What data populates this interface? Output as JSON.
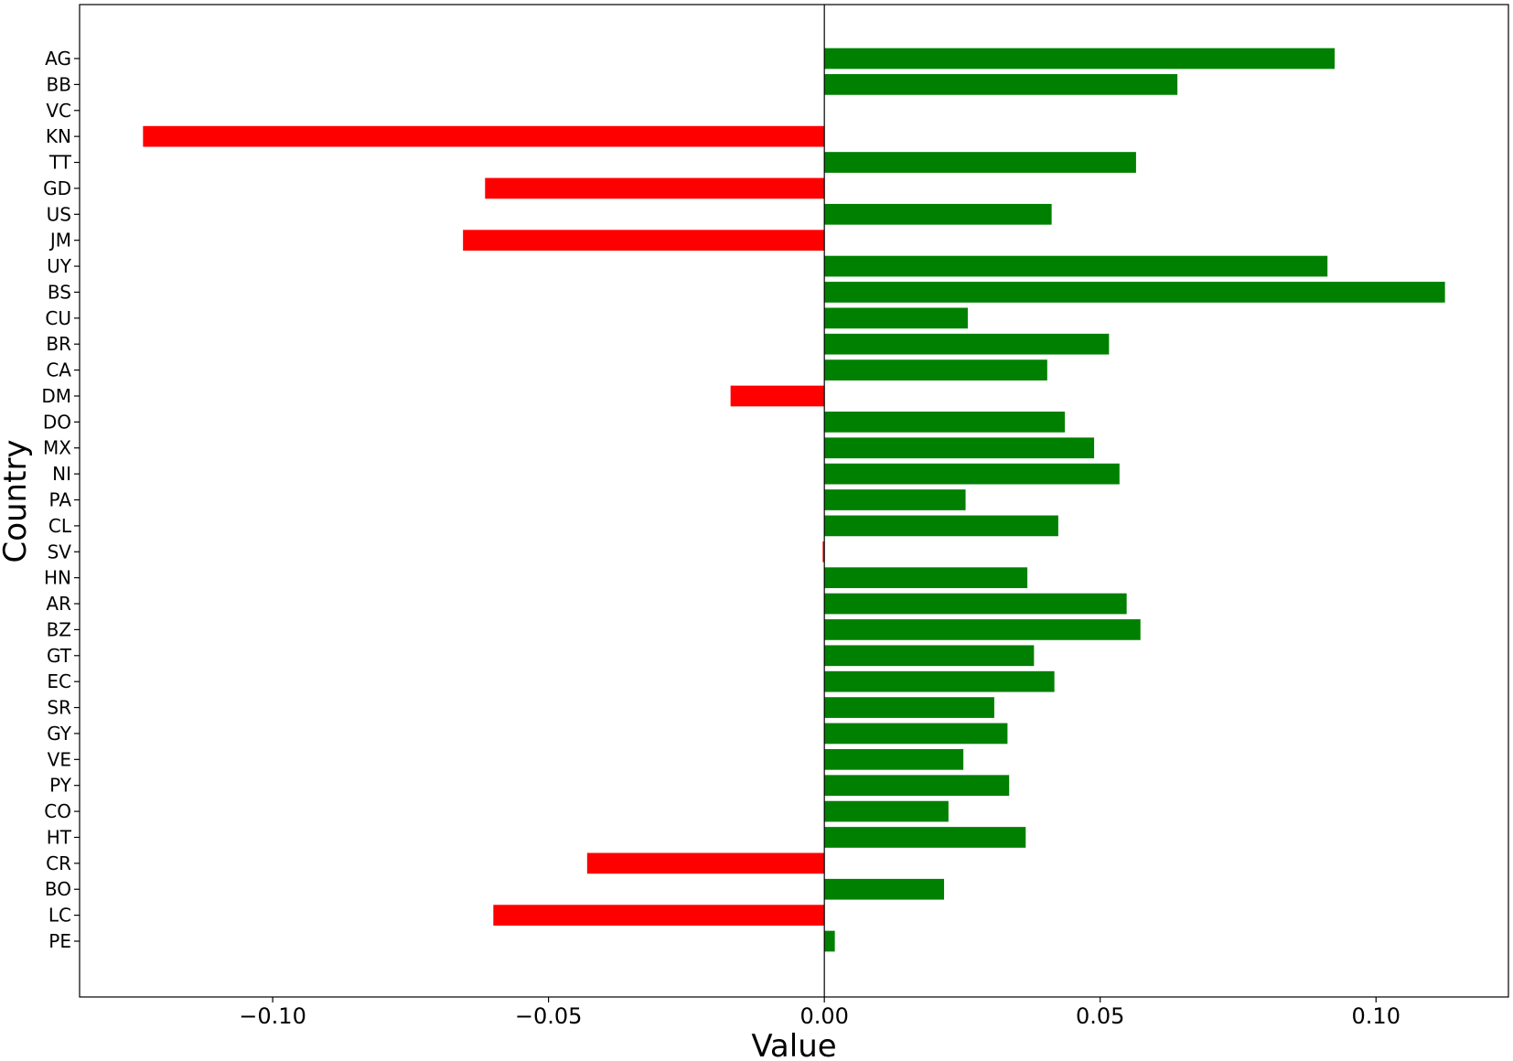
{
  "chart_data": {
    "type": "bar",
    "orientation": "horizontal",
    "title": "",
    "xlabel": "Value",
    "ylabel": "Country",
    "xlim": [
      -0.135,
      0.124
    ],
    "xticks": [
      -0.1,
      -0.05,
      0.0,
      0.05,
      0.1
    ],
    "xtick_labels": [
      "−0.10",
      "−0.05",
      "0.00",
      "0.05",
      "0.10"
    ],
    "grid": false,
    "legend": "none",
    "positive_color": "#008000",
    "negative_color": "#ff0000",
    "categories": [
      "AG",
      "BB",
      "VC",
      "KN",
      "TT",
      "GD",
      "US",
      "JM",
      "UY",
      "BS",
      "CU",
      "BR",
      "CA",
      "DM",
      "DO",
      "MX",
      "NI",
      "PA",
      "CL",
      "SV",
      "HN",
      "AR",
      "BZ",
      "GT",
      "EC",
      "SR",
      "GY",
      "VE",
      "PY",
      "CO",
      "HT",
      "CR",
      "BO",
      "LC",
      "PE"
    ],
    "values": [
      0.0925,
      0.064,
      0.0,
      -0.1235,
      0.0565,
      -0.0615,
      0.0412,
      -0.0655,
      0.0912,
      0.1125,
      0.026,
      0.0516,
      0.0404,
      -0.017,
      0.0436,
      0.0489,
      0.0535,
      0.0256,
      0.0424,
      -0.0003,
      0.0368,
      0.0548,
      0.0573,
      0.038,
      0.0417,
      0.0308,
      0.0332,
      0.0252,
      0.0335,
      0.0225,
      0.0365,
      -0.043,
      0.0217,
      -0.06,
      0.0019
    ]
  }
}
